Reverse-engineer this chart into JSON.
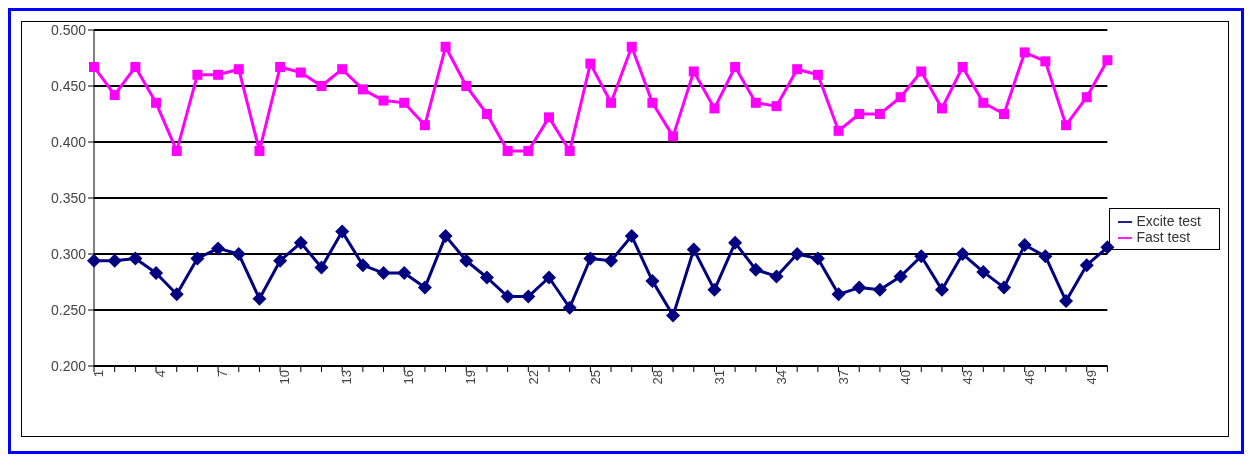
{
  "chart_data": {
    "type": "line",
    "categories": [
      "1",
      null,
      null,
      "4",
      null,
      null,
      "7",
      null,
      null,
      "10",
      null,
      null,
      "13",
      null,
      null,
      "16",
      null,
      null,
      "19",
      null,
      null,
      "22",
      null,
      null,
      "25",
      null,
      null,
      "28",
      null,
      null,
      "31",
      null,
      null,
      "34",
      null,
      null,
      "37",
      null,
      null,
      "40",
      null,
      null,
      "43",
      null,
      null,
      "46",
      null,
      null,
      "49",
      null
    ],
    "series": [
      {
        "name": "Excite test",
        "color": "#000080",
        "marker": "diamond",
        "values": [
          0.294,
          0.294,
          0.296,
          0.283,
          0.264,
          0.296,
          0.305,
          0.3,
          0.26,
          0.294,
          0.31,
          0.288,
          0.32,
          0.29,
          0.283,
          0.283,
          0.27,
          0.316,
          0.294,
          0.279,
          0.262,
          0.262,
          0.279,
          0.252,
          0.296,
          0.294,
          0.316,
          0.276,
          0.245,
          0.304,
          0.268,
          0.31,
          0.286,
          0.28,
          0.3,
          0.296,
          0.264,
          0.27,
          0.268,
          0.28,
          0.298,
          0.268,
          0.3,
          0.284,
          0.27,
          0.308,
          0.298,
          0.258,
          0.29,
          0.306
        ]
      },
      {
        "name": "Fast test",
        "color": "#ff00ff",
        "marker": "square",
        "values": [
          0.467,
          0.442,
          0.467,
          0.435,
          0.392,
          0.46,
          0.46,
          0.465,
          0.392,
          0.467,
          0.462,
          0.45,
          0.465,
          0.447,
          0.437,
          0.435,
          0.415,
          0.485,
          0.45,
          0.425,
          0.392,
          0.392,
          0.422,
          0.392,
          0.47,
          0.435,
          0.485,
          0.435,
          0.405,
          0.463,
          0.43,
          0.467,
          0.435,
          0.432,
          0.465,
          0.46,
          0.41,
          0.425,
          0.425,
          0.44,
          0.463,
          0.43,
          0.467,
          0.435,
          0.425,
          0.48,
          0.472,
          0.415,
          0.44,
          0.473
        ]
      }
    ],
    "ylim": [
      0.2,
      0.5
    ],
    "yticks": [
      {
        "value": 0.2,
        "label": "0.200"
      },
      {
        "value": 0.25,
        "label": "0.250"
      },
      {
        "value": 0.3,
        "label": "0.300"
      },
      {
        "value": 0.35,
        "label": "0.350"
      },
      {
        "value": 0.4,
        "label": "0.400"
      },
      {
        "value": 0.45,
        "label": "0.450"
      },
      {
        "value": 0.5,
        "label": "0.500"
      }
    ],
    "grid": "y",
    "legend": "right",
    "line_style": "solid"
  }
}
